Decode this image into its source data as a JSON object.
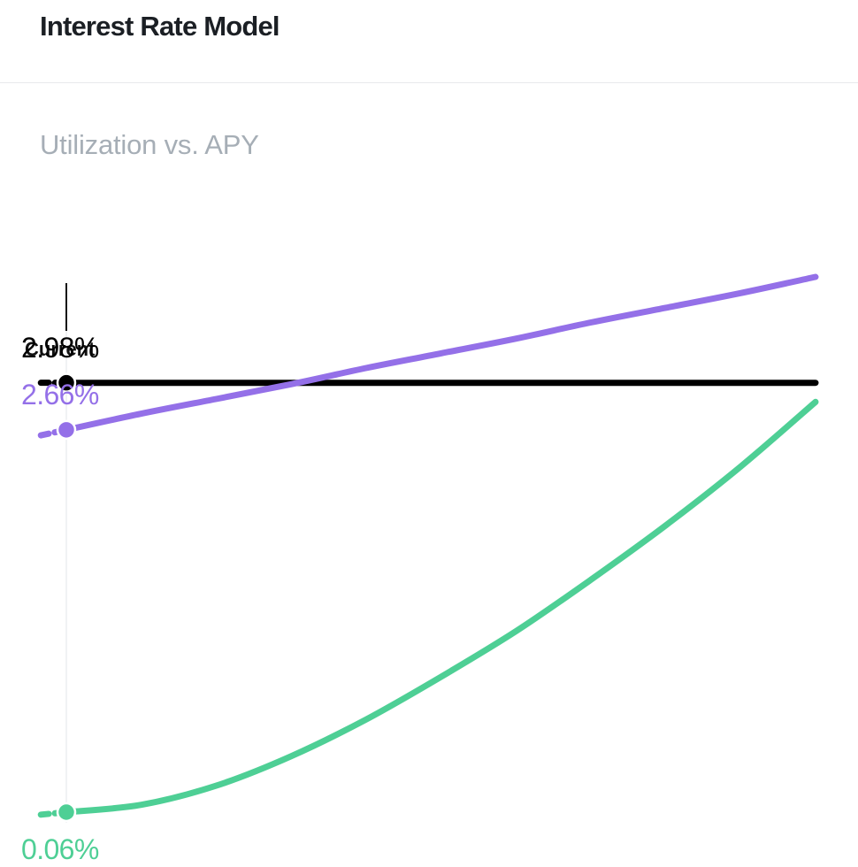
{
  "header": {
    "title": "Interest Rate Model"
  },
  "chart": {
    "subtitle": "Utilization vs. APY",
    "current_marker_label": "Current",
    "value_labels": {
      "black": "2.98%",
      "purple": "2.66%",
      "green": "0.06%"
    }
  },
  "chart_data": {
    "type": "line",
    "title": "Utilization vs. APY",
    "xlabel": "",
    "ylabel": "",
    "x": [
      0,
      0.1,
      0.2,
      0.3,
      0.4,
      0.5,
      0.6,
      0.7,
      0.8,
      0.9,
      1.0
    ],
    "series": [
      {
        "values": [
          2.98,
          2.98,
          2.98,
          2.98,
          2.98,
          2.98,
          2.98,
          2.98,
          2.98,
          2.98,
          2.98
        ],
        "color": "#000000"
      },
      {
        "values": [
          0.06,
          0.11,
          0.24,
          0.44,
          0.69,
          0.98,
          1.29,
          1.64,
          2.01,
          2.41,
          2.85
        ],
        "color": "#4ecf95"
      },
      {
        "values": [
          2.66,
          2.77,
          2.87,
          2.97,
          3.08,
          3.18,
          3.28,
          3.39,
          3.49,
          3.59,
          3.7
        ],
        "color": "#9470e8"
      }
    ],
    "current": {
      "x": 0.0,
      "label": "Current"
    },
    "grid": false,
    "legend": "none"
  }
}
